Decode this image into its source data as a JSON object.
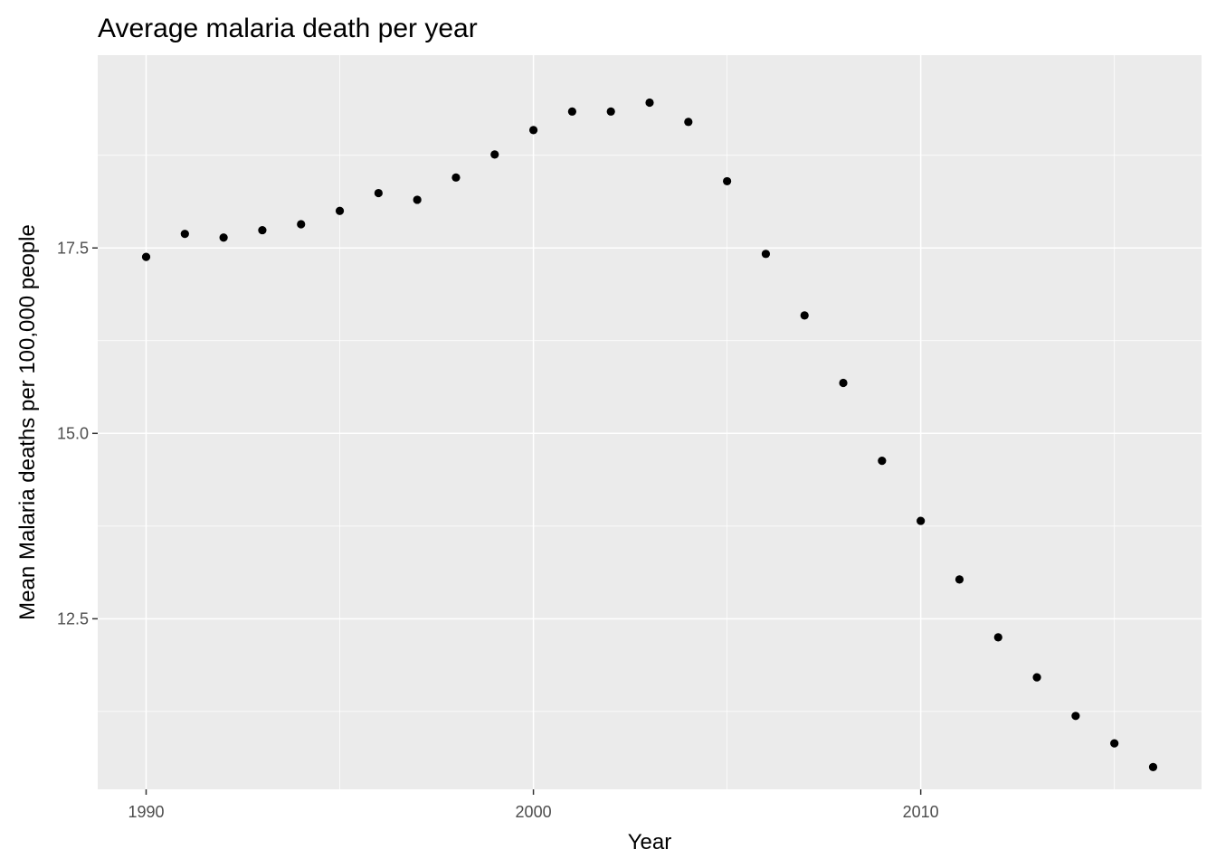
{
  "chart_data": {
    "type": "scatter",
    "title": "Average malaria death per year",
    "xlabel": "Year",
    "ylabel": "Mean Malaria deaths per 100,000 people",
    "xlim": [
      1988.75,
      2017.25
    ],
    "ylim": [
      10.2,
      20.1
    ],
    "x_ticks": [
      1990,
      2000,
      2010
    ],
    "x_tick_labels": [
      "1990",
      "2000",
      "2010"
    ],
    "y_ticks": [
      12.5,
      15.0,
      17.5
    ],
    "y_tick_labels": [
      "12.5",
      "15.0",
      "17.5"
    ],
    "grid": true,
    "legend": "none",
    "point_color": "#000000",
    "panel_color": "#ebebeb",
    "x": [
      1990,
      1991,
      1992,
      1993,
      1994,
      1995,
      1996,
      1997,
      1998,
      1999,
      2000,
      2001,
      2002,
      2003,
      2004,
      2005,
      2006,
      2007,
      2008,
      2009,
      2010,
      2011,
      2012,
      2013,
      2014,
      2015,
      2016
    ],
    "y": [
      17.38,
      17.69,
      17.64,
      17.74,
      17.82,
      18.0,
      18.24,
      18.15,
      18.45,
      18.76,
      19.09,
      19.34,
      19.34,
      19.46,
      19.2,
      18.4,
      17.42,
      16.59,
      15.68,
      14.63,
      13.82,
      13.03,
      12.25,
      11.71,
      11.19,
      10.82,
      10.5
    ]
  }
}
